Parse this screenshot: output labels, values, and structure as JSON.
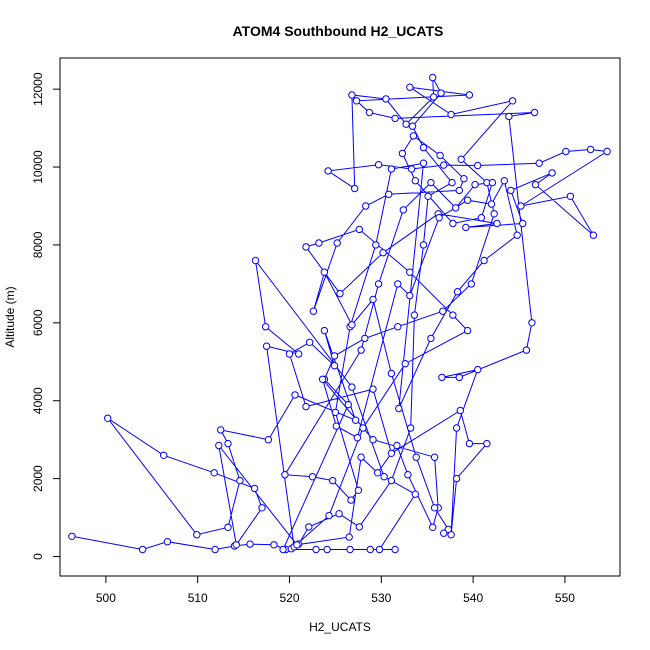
{
  "chart_data": {
    "type": "line",
    "title": "ATOM4 Southbound H2_UCATS",
    "xlabel": "H2_UCATS",
    "ylabel": "Altitude (m)",
    "xlim": [
      495,
      556
    ],
    "ylim": [
      -500,
      12800
    ],
    "x_ticks": [
      500,
      510,
      520,
      530,
      540,
      550
    ],
    "y_ticks": [
      0,
      2000,
      4000,
      6000,
      8000,
      10000,
      12000
    ],
    "grid": false,
    "markers": "open-circle",
    "color": "#0000ff",
    "series": [
      {
        "points": [
          [
            496.3,
            520
          ],
          [
            504.0,
            180
          ],
          [
            506.7,
            380
          ],
          [
            511.9,
            180
          ],
          [
            514.0,
            270
          ],
          [
            515.7,
            320
          ],
          [
            518.3,
            300
          ],
          [
            519.6,
            180
          ],
          [
            520.2,
            200
          ],
          [
            521.0,
            320
          ],
          [
            522.1,
            760
          ],
          [
            525.4,
            1100
          ],
          [
            527.6,
            760
          ],
          [
            531.1,
            1950
          ],
          [
            533.2,
            3300
          ],
          [
            533.6,
            6200
          ],
          [
            534.6,
            8000
          ],
          [
            535.1,
            9250
          ],
          [
            537.7,
            9600
          ],
          [
            534.6,
            10500
          ],
          [
            533.4,
            11050
          ],
          [
            536.5,
            11900
          ],
          [
            535.6,
            12300
          ],
          [
            535.7,
            11800
          ],
          [
            532.7,
            11100
          ],
          [
            530.5,
            11750
          ],
          [
            526.8,
            11850
          ],
          [
            527.1,
            9450
          ],
          [
            524.2,
            9900
          ],
          [
            529.7,
            10060
          ],
          [
            533.3,
            9950
          ],
          [
            536.8,
            10050
          ],
          [
            540.5,
            10040
          ],
          [
            547.2,
            10100
          ],
          [
            550.1,
            10400
          ],
          [
            552.8,
            10450
          ],
          [
            554.6,
            10400
          ],
          [
            545.2,
            9000
          ],
          [
            550.6,
            9250
          ],
          [
            553.1,
            8250
          ],
          [
            546.8,
            9550
          ],
          [
            548.6,
            9850
          ],
          [
            544.1,
            9400
          ],
          [
            545.4,
            8550
          ],
          [
            539.2,
            8450
          ],
          [
            542.6,
            8550
          ],
          [
            536.2,
            8800
          ],
          [
            530.2,
            7800
          ],
          [
            525.5,
            6750
          ],
          [
            521.8,
            7950
          ],
          [
            523.2,
            8050
          ],
          [
            527.6,
            8400
          ],
          [
            533.1,
            7300
          ],
          [
            537.8,
            6200
          ],
          [
            539.4,
            5800
          ],
          [
            532.6,
            4950
          ],
          [
            528.0,
            3300
          ],
          [
            524.3,
            1050
          ],
          [
            520.5,
            250
          ],
          [
            517.5,
            5400
          ],
          [
            521.0,
            5200
          ],
          [
            517.4,
            5900
          ],
          [
            516.3,
            7600
          ],
          [
            526.8,
            4350
          ],
          [
            530.3,
            2050
          ],
          [
            533.7,
            1600
          ],
          [
            529.8,
            180
          ],
          [
            531.5,
            180
          ],
          [
            528.8,
            180
          ],
          [
            526.6,
            180
          ],
          [
            524.1,
            180
          ],
          [
            522.9,
            180
          ],
          [
            519.3,
            180
          ],
          [
            526.4,
            3900
          ],
          [
            523.8,
            4550
          ],
          [
            524.9,
            5150
          ],
          [
            528.2,
            5600
          ],
          [
            531.8,
            5900
          ],
          [
            536.7,
            6300
          ],
          [
            539.8,
            7000
          ],
          [
            542.3,
            8800
          ],
          [
            541.5,
            9600
          ],
          [
            538.7,
            10200
          ],
          [
            544.3,
            11700
          ],
          [
            537.6,
            11350
          ],
          [
            533.1,
            12050
          ],
          [
            539.6,
            11850
          ],
          [
            527.3,
            11700
          ],
          [
            528.7,
            11400
          ],
          [
            531.5,
            11250
          ],
          [
            546.7,
            11400
          ],
          [
            543.9,
            11300
          ],
          [
            546.4,
            6000
          ],
          [
            545.8,
            5300
          ],
          [
            538.5,
            4600
          ],
          [
            536.6,
            4600
          ],
          [
            540.5,
            4800
          ],
          [
            538.2,
            3300
          ],
          [
            537.6,
            560
          ],
          [
            538.2,
            2000
          ],
          [
            541.5,
            2900
          ],
          [
            539.6,
            2900
          ],
          [
            538.6,
            3750
          ],
          [
            531.1,
            2650
          ],
          [
            529.1,
            4300
          ],
          [
            521.8,
            3850
          ],
          [
            520.0,
            5200
          ],
          [
            522.2,
            5500
          ],
          [
            524.9,
            4900
          ],
          [
            523.8,
            5800
          ],
          [
            527.2,
            3500
          ],
          [
            520.6,
            4150
          ],
          [
            517.7,
            3000
          ],
          [
            512.5,
            3250
          ],
          [
            513.3,
            2900
          ],
          [
            514.6,
            1950
          ],
          [
            513.3,
            750
          ],
          [
            509.9,
            560
          ],
          [
            500.2,
            3550
          ],
          [
            506.3,
            2600
          ],
          [
            511.8,
            2150
          ],
          [
            516.2,
            1750
          ],
          [
            517.0,
            1250
          ],
          [
            514.2,
            300
          ],
          [
            512.3,
            2850
          ],
          [
            520.8,
            300
          ],
          [
            526.5,
            500
          ],
          [
            527.8,
            2550
          ],
          [
            529.6,
            2150
          ],
          [
            531.7,
            2850
          ],
          [
            532.9,
            2100
          ],
          [
            535.6,
            750
          ],
          [
            536.2,
            1250
          ],
          [
            535.8,
            2550
          ],
          [
            529.1,
            3000
          ],
          [
            523.6,
            4550
          ],
          [
            525.1,
            3350
          ],
          [
            527.4,
            3050
          ],
          [
            531.8,
            7000
          ],
          [
            533.1,
            6700
          ],
          [
            536.3,
            8700
          ],
          [
            539.4,
            9150
          ],
          [
            542.0,
            9050
          ],
          [
            543.4,
            9650
          ],
          [
            544.8,
            8250
          ],
          [
            541.2,
            7600
          ],
          [
            538.3,
            6800
          ],
          [
            535.4,
            5600
          ],
          [
            531.9,
            3800
          ],
          [
            534.6,
            10100
          ],
          [
            531.1,
            9950
          ],
          [
            529.4,
            8000
          ],
          [
            526.6,
            5900
          ],
          [
            525.0,
            3700
          ],
          [
            527.5,
            1700
          ],
          [
            526.7,
            1450
          ],
          [
            524.7,
            1950
          ],
          [
            522.5,
            2050
          ],
          [
            519.5,
            2100
          ],
          [
            527.8,
            5300
          ],
          [
            529.7,
            7000
          ],
          [
            532.4,
            8900
          ],
          [
            535.4,
            9600
          ],
          [
            538.1,
            8950
          ],
          [
            540.2,
            9550
          ],
          [
            542.1,
            9600
          ],
          [
            540.9,
            8700
          ],
          [
            537.8,
            8550
          ],
          [
            533.7,
            9650
          ],
          [
            532.3,
            10350
          ],
          [
            533.5,
            10800
          ],
          [
            536.4,
            10300
          ],
          [
            539.0,
            9700
          ],
          [
            538.5,
            9400
          ],
          [
            530.8,
            9300
          ],
          [
            528.3,
            9000
          ],
          [
            525.2,
            8050
          ],
          [
            522.6,
            6300
          ],
          [
            523.8,
            7300
          ],
          [
            526.8,
            5950
          ],
          [
            529.1,
            6600
          ],
          [
            531.1,
            4700
          ],
          [
            533.8,
            2550
          ],
          [
            535.8,
            1250
          ],
          [
            537.3,
            700
          ],
          [
            536.8,
            600
          ]
        ]
      }
    ]
  }
}
